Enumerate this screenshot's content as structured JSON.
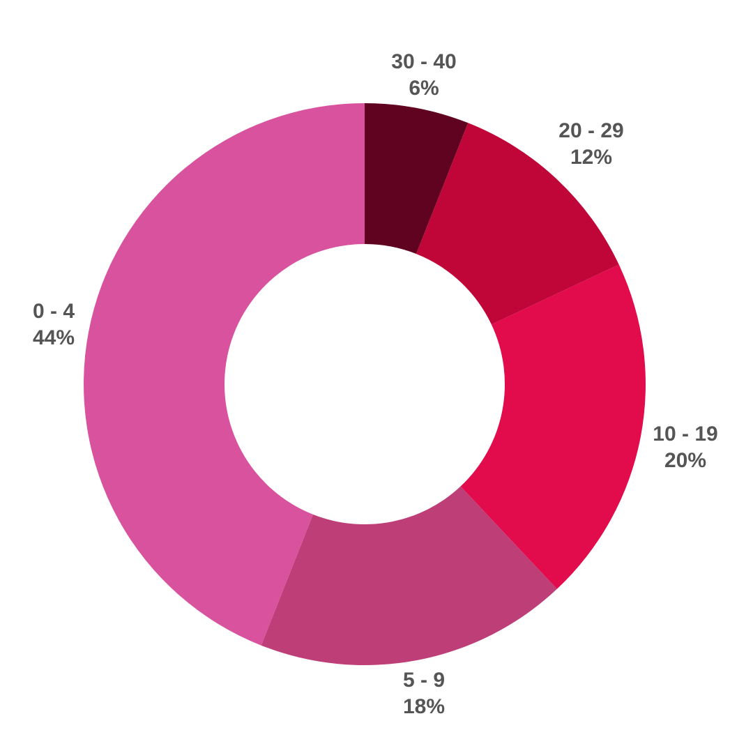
{
  "chart_data": {
    "type": "pie",
    "variant": "donut",
    "direction": "clockwise",
    "start": "top",
    "slices": [
      {
        "label": "30 - 40",
        "value": 6,
        "value_label": "6%",
        "color": "#600320"
      },
      {
        "label": "20 - 29",
        "value": 12,
        "value_label": "12%",
        "color": "#C00538"
      },
      {
        "label": "10 - 19",
        "value": 20,
        "value_label": "20%",
        "color": "#E20B4B"
      },
      {
        "label": "5 - 9",
        "value": 18,
        "value_label": "18%",
        "color": "#BE3E78"
      },
      {
        "label": "0 - 4",
        "value": 44,
        "value_label": "44%",
        "color": "#D9529D"
      }
    ],
    "label_color": "#555555",
    "background": "#FFFFFF"
  }
}
